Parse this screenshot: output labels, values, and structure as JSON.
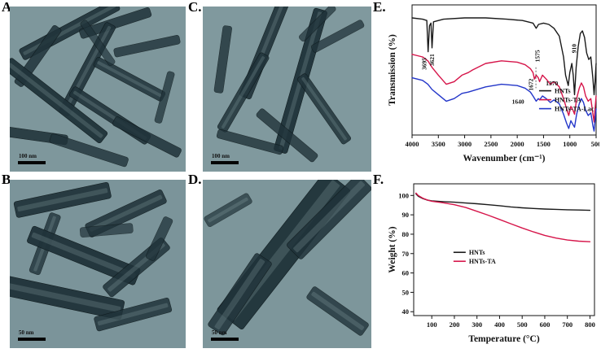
{
  "panels": {
    "a": {
      "label": "A.",
      "scale_label": "100 nm",
      "bg": "#7e979c",
      "rods": [
        [
          34,
          14,
          -28,
          62,
          15,
          0.92
        ],
        [
          60,
          10,
          -18,
          42,
          12,
          0.85
        ],
        [
          78,
          24,
          -12,
          38,
          11,
          0.8
        ],
        [
          16,
          30,
          -55,
          40,
          12,
          0.85
        ],
        [
          44,
          38,
          -62,
          58,
          14,
          0.9
        ],
        [
          68,
          44,
          28,
          44,
          13,
          0.85
        ],
        [
          26,
          57,
          38,
          70,
          17,
          0.95
        ],
        [
          57,
          66,
          33,
          52,
          14,
          0.9
        ],
        [
          78,
          79,
          27,
          42,
          12,
          0.85
        ],
        [
          13,
          78,
          8,
          40,
          12,
          0.88
        ],
        [
          45,
          87,
          18,
          46,
          12,
          0.8
        ],
        [
          88,
          55,
          -75,
          30,
          9,
          0.75
        ],
        [
          50,
          22,
          55,
          30,
          9,
          0.7
        ]
      ]
    },
    "b": {
      "label": "B.",
      "scale_label": "50 nm",
      "bg": "#7b949a",
      "rods": [
        [
          30,
          12,
          -12,
          55,
          20,
          0.92
        ],
        [
          66,
          20,
          -25,
          48,
          18,
          0.88
        ],
        [
          20,
          38,
          -70,
          36,
          14,
          0.8
        ],
        [
          42,
          45,
          22,
          66,
          22,
          0.95
        ],
        [
          72,
          52,
          -40,
          44,
          18,
          0.85
        ],
        [
          30,
          70,
          12,
          70,
          24,
          0.95
        ],
        [
          70,
          80,
          -15,
          44,
          18,
          0.85
        ],
        [
          55,
          30,
          -5,
          30,
          12,
          0.7
        ],
        [
          85,
          35,
          -65,
          26,
          12,
          0.75
        ]
      ]
    },
    "c": {
      "label": "C.",
      "scale_label": "100 nm",
      "bg": "#80999e",
      "rods": [
        [
          38,
          22,
          -68,
          70,
          15,
          0.9
        ],
        [
          58,
          45,
          -74,
          88,
          17,
          0.95
        ],
        [
          24,
          52,
          -60,
          52,
          13,
          0.85
        ],
        [
          72,
          62,
          55,
          48,
          13,
          0.85
        ],
        [
          50,
          78,
          40,
          44,
          12,
          0.8
        ],
        [
          80,
          18,
          -28,
          34,
          10,
          0.75
        ],
        [
          28,
          82,
          15,
          40,
          11,
          0.8
        ],
        [
          12,
          32,
          -82,
          40,
          11,
          0.8
        ],
        [
          68,
          10,
          -45,
          28,
          9,
          0.7
        ]
      ]
    },
    "d": {
      "label": "D.",
      "scale_label": "50 nm",
      "bg": "#7d969b",
      "rods": [
        [
          48,
          42,
          -52,
          105,
          40,
          0.95
        ],
        [
          75,
          22,
          -45,
          60,
          26,
          0.85
        ],
        [
          22,
          68,
          -56,
          52,
          24,
          0.85
        ],
        [
          80,
          78,
          35,
          40,
          18,
          0.8
        ],
        [
          15,
          18,
          -30,
          30,
          14,
          0.7
        ]
      ]
    }
  },
  "chart_data": [
    {
      "id": "ftir",
      "label": "E.",
      "type": "line",
      "xlabel": "Wavenumber (cm⁻¹)",
      "ylabel": "Transmission (%)",
      "x_range": [
        4000,
        500
      ],
      "y_range": [
        0,
        100
      ],
      "x_ticks": [
        4000,
        3500,
        3000,
        2500,
        2000,
        1500,
        1000,
        500
      ],
      "margins": [
        32,
        4,
        4,
        42
      ],
      "legend": {
        "x": 0.69,
        "y": 0.66
      },
      "series": [
        {
          "name": "HNTs",
          "color": "#1a1a1a",
          "points": [
            [
              4000,
              90
            ],
            [
              3800,
              89
            ],
            [
              3720,
              88
            ],
            [
              3695,
              64
            ],
            [
              3668,
              84
            ],
            [
              3640,
              86
            ],
            [
              3621,
              67
            ],
            [
              3592,
              87
            ],
            [
              3400,
              89
            ],
            [
              3000,
              90
            ],
            [
              2600,
              90
            ],
            [
              2200,
              89
            ],
            [
              1900,
              88
            ],
            [
              1800,
              87
            ],
            [
              1700,
              86
            ],
            [
              1640,
              82
            ],
            [
              1595,
              85
            ],
            [
              1500,
              86
            ],
            [
              1400,
              85
            ],
            [
              1300,
              82
            ],
            [
              1200,
              76
            ],
            [
              1120,
              60
            ],
            [
              1080,
              46
            ],
            [
              1030,
              38
            ],
            [
              1000,
              48
            ],
            [
              962,
              55
            ],
            [
              935,
              46
            ],
            [
              910,
              31
            ],
            [
              880,
              52
            ],
            [
              840,
              68
            ],
            [
              800,
              78
            ],
            [
              760,
              80
            ],
            [
              720,
              75
            ],
            [
              680,
              63
            ],
            [
              640,
              58
            ],
            [
              600,
              60
            ],
            [
              560,
              43
            ],
            [
              538,
              31
            ],
            [
              520,
              41
            ],
            [
              500,
              55
            ]
          ]
        },
        {
          "name": "HNTs-TA",
          "color": "#d6154a",
          "points": [
            [
              4000,
              62
            ],
            [
              3800,
              60
            ],
            [
              3700,
              57
            ],
            [
              3621,
              52
            ],
            [
              3500,
              46
            ],
            [
              3350,
              39
            ],
            [
              3200,
              41
            ],
            [
              3050,
              46
            ],
            [
              2930,
              48
            ],
            [
              2850,
              50
            ],
            [
              2600,
              55
            ],
            [
              2300,
              57
            ],
            [
              2000,
              56
            ],
            [
              1850,
              54
            ],
            [
              1750,
              51
            ],
            [
              1700,
              48
            ],
            [
              1672,
              43
            ],
            [
              1640,
              46
            ],
            [
              1600,
              44
            ],
            [
              1575,
              41
            ],
            [
              1520,
              46
            ],
            [
              1450,
              43
            ],
            [
              1370,
              39
            ],
            [
              1300,
              41
            ],
            [
              1250,
              39
            ],
            [
              1200,
              37
            ],
            [
              1120,
              28
            ],
            [
              1060,
              20
            ],
            [
              1020,
              15
            ],
            [
              980,
              22
            ],
            [
              940,
              19
            ],
            [
              910,
              16
            ],
            [
              870,
              28
            ],
            [
              820,
              36
            ],
            [
              780,
              40
            ],
            [
              740,
              37
            ],
            [
              700,
              30
            ],
            [
              650,
              26
            ],
            [
              600,
              28
            ],
            [
              560,
              16
            ],
            [
              538,
              10
            ],
            [
              520,
              20
            ],
            [
              500,
              30
            ]
          ]
        },
        {
          "name": "HNTs-TA-Lac",
          "color": "#2336c9",
          "points": [
            [
              4000,
              44
            ],
            [
              3800,
              42
            ],
            [
              3700,
              39
            ],
            [
              3621,
              35
            ],
            [
              3500,
              31
            ],
            [
              3350,
              26
            ],
            [
              3200,
              28
            ],
            [
              3050,
              32
            ],
            [
              2930,
              33
            ],
            [
              2600,
              37
            ],
            [
              2300,
              39
            ],
            [
              2000,
              38
            ],
            [
              1850,
              36
            ],
            [
              1750,
              33
            ],
            [
              1700,
              30
            ],
            [
              1640,
              26
            ],
            [
              1600,
              28
            ],
            [
              1575,
              27
            ],
            [
              1520,
              30
            ],
            [
              1450,
              28
            ],
            [
              1370,
              25
            ],
            [
              1300,
              27
            ],
            [
              1200,
              24
            ],
            [
              1120,
              16
            ],
            [
              1060,
              9
            ],
            [
              1020,
              5
            ],
            [
              980,
              11
            ],
            [
              940,
              8
            ],
            [
              910,
              6
            ],
            [
              870,
              16
            ],
            [
              820,
              24
            ],
            [
              780,
              28
            ],
            [
              740,
              25
            ],
            [
              700,
              19
            ],
            [
              650,
              15
            ],
            [
              600,
              17
            ],
            [
              560,
              7
            ],
            [
              538,
              3
            ],
            [
              520,
              11
            ],
            [
              500,
              20
            ]
          ]
        }
      ],
      "annotations": [
        {
          "text": "3695",
          "x": 3730,
          "v": 50,
          "rot": true
        },
        {
          "text": "3621",
          "x": 3580,
          "v": 53,
          "rot": true
        },
        {
          "text": "1575",
          "x": 1575,
          "v": 56,
          "rot": true
        },
        {
          "text": "910",
          "x": 880,
          "v": 63,
          "rot": true
        },
        {
          "text": "1672",
          "x": 1700,
          "v": 34,
          "rot": true,
          "leader_x": 1645,
          "leader": [
            52,
            36
          ]
        },
        {
          "text": "1370",
          "x": 1340,
          "v": 38,
          "rot": false
        },
        {
          "text": "1640",
          "x": 1985,
          "v": 24,
          "rot": false
        }
      ]
    },
    {
      "id": "tga",
      "label": "F.",
      "type": "line",
      "xlabel": "Temperature (°C)",
      "ylabel": "Weight (%)",
      "x_range": [
        20,
        820
      ],
      "y_range": [
        38,
        106
      ],
      "x_ticks": [
        100,
        200,
        300,
        400,
        500,
        600,
        700,
        800
      ],
      "y_ticks": [
        40,
        50,
        60,
        70,
        80,
        90,
        100
      ],
      "margins": [
        34,
        6,
        6,
        44
      ],
      "legend": {
        "x": 0.22,
        "y": 0.52
      },
      "series": [
        {
          "name": "HNTs",
          "color": "#1a1a1a",
          "points": [
            [
              30,
              100.8
            ],
            [
              40,
              99.6
            ],
            [
              60,
              98.4
            ],
            [
              80,
              97.6
            ],
            [
              100,
              97.2
            ],
            [
              150,
              96.8
            ],
            [
              200,
              96.5
            ],
            [
              250,
              96.1
            ],
            [
              300,
              95.7
            ],
            [
              350,
              95.2
            ],
            [
              400,
              94.7
            ],
            [
              450,
              94.1
            ],
            [
              500,
              93.6
            ],
            [
              550,
              93.3
            ],
            [
              600,
              93.0
            ],
            [
              650,
              92.8
            ],
            [
              700,
              92.6
            ],
            [
              750,
              92.5
            ],
            [
              800,
              92.3
            ]
          ]
        },
        {
          "name": "HNTs-TA",
          "color": "#d6154a",
          "points": [
            [
              30,
              101.2
            ],
            [
              40,
              100.0
            ],
            [
              60,
              98.6
            ],
            [
              80,
              97.7
            ],
            [
              100,
              97.0
            ],
            [
              150,
              96.2
            ],
            [
              200,
              95.2
            ],
            [
              250,
              93.8
            ],
            [
              300,
              91.8
            ],
            [
              350,
              89.8
            ],
            [
              400,
              87.6
            ],
            [
              450,
              85.4
            ],
            [
              500,
              83.2
            ],
            [
              550,
              81.2
            ],
            [
              600,
              79.4
            ],
            [
              650,
              78.0
            ],
            [
              700,
              77.0
            ],
            [
              750,
              76.4
            ],
            [
              800,
              76.1
            ]
          ]
        }
      ],
      "annotations": []
    }
  ]
}
